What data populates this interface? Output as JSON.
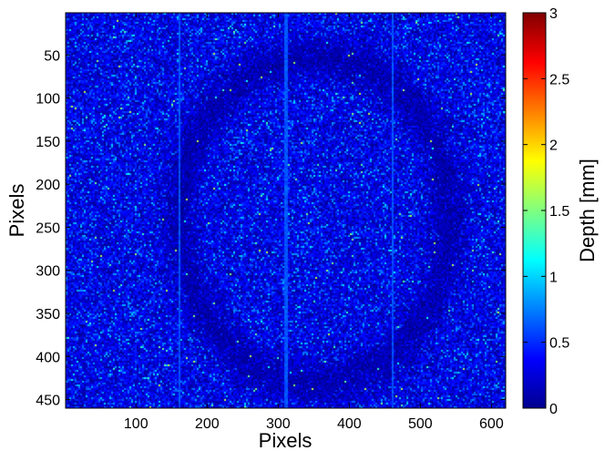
{
  "chart_data": {
    "type": "heatmap",
    "title": "",
    "xlabel": "Pixels",
    "ylabel": "Pixels",
    "colorbar_label": "Depth [mm]",
    "colormap": "jet",
    "x_range": [
      1,
      620
    ],
    "y_range": [
      1,
      460
    ],
    "y_axis_reversed": true,
    "x_ticks": [
      100,
      200,
      300,
      400,
      500,
      600
    ],
    "y_ticks": [
      50,
      100,
      150,
      200,
      250,
      300,
      350,
      400,
      450
    ],
    "color_range": [
      0,
      3
    ],
    "colorbar_ticks": [
      "0",
      "0.5",
      "1",
      "1.5",
      "2",
      "2.5",
      "3"
    ],
    "colorbar_tick_values": [
      0,
      0.5,
      1,
      1.5,
      2,
      2.5,
      3
    ],
    "grid": false,
    "depth_typical": [
      0.05,
      0.9
    ],
    "features": {
      "ring_center": [
        350,
        240
      ],
      "ring_radius": 190,
      "vertical_seams_x": [
        160,
        310,
        460
      ]
    }
  }
}
